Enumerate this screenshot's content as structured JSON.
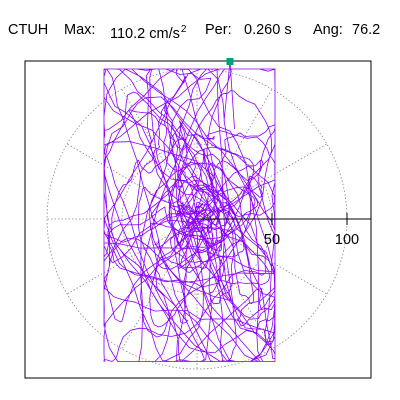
{
  "header": {
    "station": "CTUH",
    "max_label": "Max:",
    "max_value": "110.2",
    "max_unit": "cm/s",
    "max_unit_exp": "2",
    "per_label": "Per:",
    "per_value": "0.260 s",
    "ang_label": "Ang:",
    "ang_value": "76.2"
  },
  "colors": {
    "trace": "#8b00ff",
    "marker": "#00a07a",
    "grid": "#888888",
    "axis": "#000000"
  },
  "chart_data": {
    "type": "polar-hodogram",
    "title": "",
    "r_ticks": [
      50,
      100
    ],
    "r_tick_labels": [
      "50",
      "100"
    ],
    "r_max": 100,
    "grid": true,
    "grid_style": "dotted",
    "spoke_angles_deg": [
      0,
      30,
      60,
      90,
      120,
      150,
      180,
      210,
      240,
      270,
      300,
      330
    ],
    "peak_point": {
      "x": 22,
      "y": 105
    },
    "trace_extent": {
      "x_min": -62,
      "x_max": 52,
      "y_min": -95,
      "y_max": 100
    }
  }
}
